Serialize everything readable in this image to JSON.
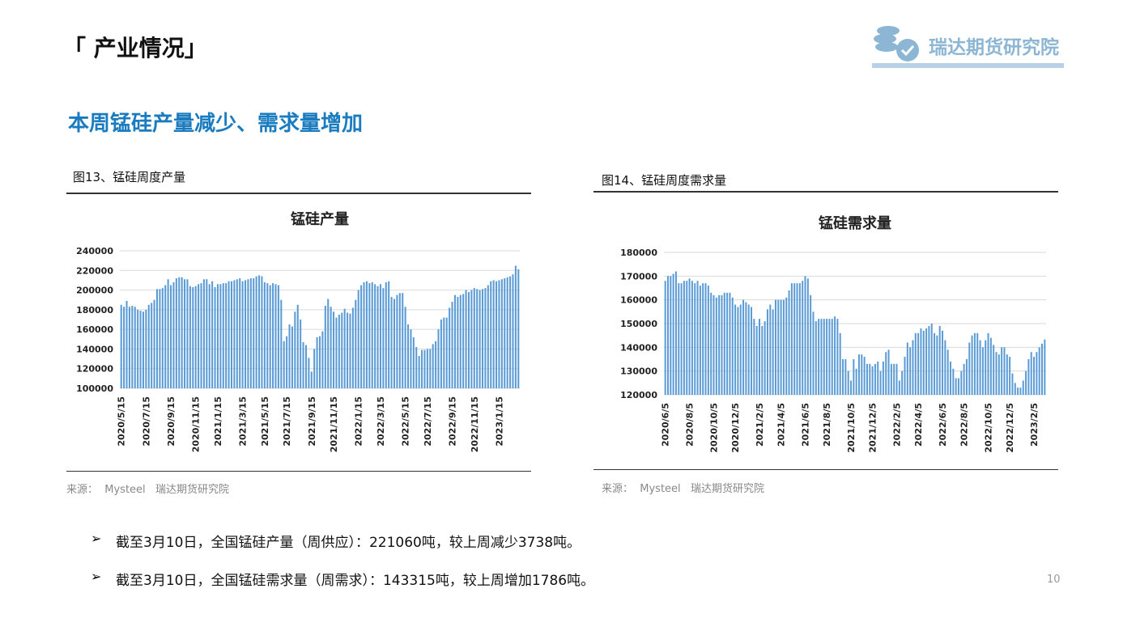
{
  "header": {
    "title": "「 产业情况」",
    "logo": "瑞达期货研究院",
    "subtitle": "本周锰硅产量减少、需求量增加"
  },
  "chart_data": [
    {
      "type": "bar",
      "caption": "图13、锰硅周度产量",
      "title": "锰硅产量",
      "source": "来源：  Mysteel   瑞达期货研究院",
      "color": "#5b9bd5",
      "grid": true,
      "ylim": [
        100000,
        240000
      ],
      "yticks": [
        100000,
        120000,
        140000,
        160000,
        180000,
        200000,
        220000,
        240000
      ],
      "categories": [
        "2020/5/15",
        null,
        null,
        null,
        null,
        null,
        null,
        null,
        null,
        "2020/7/15",
        null,
        null,
        null,
        null,
        null,
        null,
        null,
        null,
        "2020/9/15",
        null,
        null,
        null,
        null,
        null,
        null,
        null,
        null,
        "2020/11/15",
        null,
        null,
        null,
        null,
        null,
        null,
        null,
        "2021/1/15",
        null,
        null,
        null,
        null,
        null,
        null,
        null,
        null,
        "2021/3/15",
        null,
        null,
        null,
        null,
        null,
        null,
        null,
        "2021/5/15",
        null,
        null,
        null,
        null,
        null,
        null,
        null,
        "2021/7/15",
        null,
        null,
        null,
        null,
        null,
        null,
        null,
        null,
        "2021/9/15",
        null,
        null,
        null,
        null,
        null,
        null,
        null,
        "2021/11/15",
        null,
        null,
        null,
        null,
        null,
        null,
        null,
        null,
        "2022/1/15",
        null,
        null,
        null,
        null,
        null,
        null,
        null,
        "2022/3/15",
        null,
        null,
        null,
        null,
        null,
        null,
        null,
        null,
        "2022/5/15",
        null,
        null,
        null,
        null,
        null,
        null,
        null,
        "2022/7/15",
        null,
        null,
        null,
        null,
        null,
        null,
        null,
        null,
        "2022/9/15",
        null,
        null,
        null,
        null,
        null,
        null,
        null,
        "2022/11/15",
        null,
        null,
        null,
        null,
        null,
        null,
        null,
        null,
        "2023/1/15",
        null,
        null,
        null,
        null,
        null,
        null,
        null
      ],
      "values": [
        185000,
        183000,
        189000,
        183000,
        184000,
        183000,
        180000,
        179000,
        178000,
        180000,
        185000,
        187000,
        190000,
        201000,
        201000,
        202000,
        205000,
        211000,
        205000,
        208000,
        212000,
        213000,
        213000,
        211000,
        211000,
        204000,
        203000,
        204000,
        206000,
        207000,
        211000,
        211000,
        206000,
        209000,
        203000,
        206000,
        206000,
        207000,
        207000,
        209000,
        209000,
        210000,
        211000,
        212000,
        209000,
        210000,
        211000,
        212000,
        212000,
        214000,
        215000,
        214000,
        208000,
        207000,
        205000,
        207000,
        206000,
        205000,
        190000,
        148000,
        153000,
        165000,
        163000,
        178000,
        185000,
        170000,
        147000,
        144000,
        131000,
        117000,
        140000,
        152000,
        153000,
        158000,
        184000,
        191000,
        183000,
        178000,
        172000,
        175000,
        177000,
        181000,
        177000,
        176000,
        182000,
        190000,
        200000,
        205000,
        208000,
        209000,
        207000,
        208000,
        206000,
        204000,
        206000,
        202000,
        208000,
        209000,
        193000,
        191000,
        195000,
        197000,
        197000,
        183000,
        165000,
        160000,
        152000,
        142000,
        133000,
        139000,
        139000,
        140000,
        140000,
        145000,
        148000,
        160000,
        170000,
        172000,
        172000,
        182000,
        188000,
        195000,
        193000,
        195000,
        196000,
        200000,
        198000,
        200000,
        202000,
        201000,
        200000,
        201000,
        202000,
        205000,
        209000,
        210000,
        209000,
        210000,
        211000,
        212000,
        213000,
        214000,
        216000,
        224798,
        221060
      ]
    },
    {
      "type": "bar",
      "caption": "图14、锰硅周度需求量",
      "title": "锰硅需求量",
      "source": "来源：  Mysteel   瑞达期货研究院",
      "color": "#5b9bd5",
      "grid": true,
      "ylim": [
        120000,
        180000
      ],
      "yticks": [
        120000,
        130000,
        140000,
        150000,
        160000,
        170000,
        180000
      ],
      "categories": [
        "2020/6/5",
        null,
        null,
        null,
        null,
        null,
        null,
        null,
        null,
        "2020/8/5",
        null,
        null,
        null,
        null,
        null,
        null,
        null,
        null,
        "2020/10/5",
        null,
        null,
        null,
        null,
        null,
        null,
        null,
        "2020/12/5",
        null,
        null,
        null,
        null,
        null,
        null,
        null,
        null,
        "2021/2/5",
        null,
        null,
        null,
        null,
        null,
        null,
        null,
        "2021/4/5",
        null,
        null,
        null,
        null,
        null,
        null,
        null,
        null,
        "2021/6/5",
        null,
        null,
        null,
        null,
        null,
        null,
        null,
        "2021/8/5",
        null,
        null,
        null,
        null,
        null,
        null,
        null,
        null,
        "2021/10/5",
        null,
        null,
        null,
        null,
        null,
        null,
        null,
        "2021/12/5",
        null,
        null,
        null,
        null,
        null,
        null,
        null,
        null,
        "2022/2/5",
        null,
        null,
        null,
        null,
        null,
        null,
        null,
        "2022/4/5",
        null,
        null,
        null,
        null,
        null,
        null,
        null,
        null,
        "2022/6/5",
        null,
        null,
        null,
        null,
        null,
        null,
        null,
        "2022/8/5",
        null,
        null,
        null,
        null,
        null,
        null,
        null,
        null,
        "2022/10/5",
        null,
        null,
        null,
        null,
        null,
        null,
        null,
        "2022/12/5",
        null,
        null,
        null,
        null,
        null,
        null,
        null,
        null,
        "2023/2/5",
        null,
        null,
        null,
        null
      ],
      "values": [
        168000,
        170000,
        170000,
        171000,
        172000,
        167000,
        167000,
        168000,
        168000,
        169000,
        168000,
        167000,
        168000,
        166000,
        167000,
        167000,
        166000,
        163000,
        162000,
        161000,
        162000,
        162000,
        163000,
        163000,
        163000,
        161000,
        158000,
        157000,
        158000,
        160000,
        159000,
        158000,
        157000,
        152000,
        149000,
        152000,
        149000,
        151000,
        156000,
        158000,
        156000,
        160000,
        160000,
        160000,
        160000,
        161000,
        164000,
        167000,
        167000,
        167000,
        167000,
        168000,
        170000,
        169000,
        162000,
        155000,
        151000,
        152000,
        152000,
        152000,
        152000,
        152000,
        152000,
        153000,
        152000,
        146000,
        135000,
        135000,
        130000,
        126000,
        135000,
        131000,
        137000,
        137000,
        136000,
        133000,
        133000,
        132000,
        133000,
        134000,
        130000,
        134000,
        138000,
        139000,
        133000,
        133000,
        133000,
        126000,
        130000,
        136000,
        142000,
        140000,
        143000,
        146000,
        146000,
        148000,
        147000,
        148000,
        149000,
        150000,
        146000,
        145000,
        149000,
        147000,
        143000,
        139000,
        134000,
        131000,
        127000,
        127000,
        130000,
        133000,
        135000,
        142000,
        145000,
        146000,
        146000,
        143000,
        140000,
        143000,
        146000,
        144000,
        141000,
        138000,
        137000,
        140000,
        140000,
        137000,
        136000,
        129000,
        125000,
        123000,
        123000,
        126000,
        130000,
        135000,
        138000,
        136000,
        138000,
        140000,
        141529,
        143315
      ]
    }
  ],
  "bullets": [
    "截至3月10日，全国锰硅产量（周供应）：221060吨，较上周减少3738吨。",
    "截至3月10日，全国锰硅需求量（周需求）：143315吨，较上周增加1786吨。"
  ],
  "page_number": "10"
}
